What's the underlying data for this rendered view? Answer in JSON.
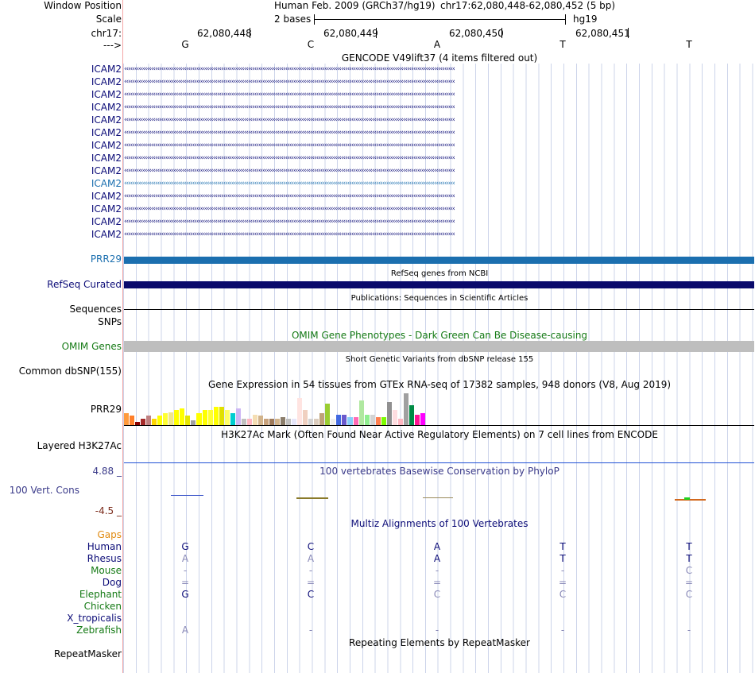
{
  "header": {
    "window_position_label": "Window Position",
    "scale_label": "Scale",
    "chrom_label": "chr17:",
    "strand_label": "--->",
    "assembly": "Human Feb. 2009 (GRCh37/hg19)",
    "position": "chr17:62,080,448-62,080,452 (5 bp)",
    "scale_text": "2 bases",
    "scale_db": "hg19",
    "coords": [
      "62,080,448",
      "62,080,449",
      "62,080,450",
      "62,080,451"
    ],
    "bases": [
      "G",
      "C",
      "A",
      "T",
      "T"
    ]
  },
  "gencode": {
    "title": "GENCODE V49lift37 (4 items filtered out)",
    "rows": [
      "ICAM2",
      "ICAM2",
      "ICAM2",
      "ICAM2",
      "ICAM2",
      "ICAM2",
      "ICAM2",
      "ICAM2",
      "ICAM2",
      "ICAM2",
      "ICAM2",
      "ICAM2",
      "ICAM2",
      "ICAM2"
    ],
    "highlight_row": 9,
    "prr29": "PRR29"
  },
  "refseq": {
    "title": "RefSeq genes from NCBI",
    "label": "RefSeq Curated"
  },
  "pubs": {
    "title": "Publications: Sequences in Scientific Articles",
    "label": "Sequences",
    "snps": "SNPs"
  },
  "omim": {
    "title": "OMIM Gene Phenotypes - Dark Green Can Be Disease-causing",
    "label": "OMIM Genes"
  },
  "dbsnp": {
    "title": "Short Genetic Variants from dbSNP release 155",
    "label": "Common dbSNP(155)"
  },
  "gtex": {
    "title": "Gene Expression in 54 tissues from GTEx RNA-seq of 17382 samples, 948 donors (V8, Aug 2019)",
    "label": "PRR29"
  },
  "h3k27": {
    "title": "H3K27Ac Mark (Often Found Near Active Regulatory Elements) on 7 cell lines from ENCODE",
    "label": "Layered H3K27Ac"
  },
  "cons": {
    "title": "100 vertebrates Basewise Conservation by PhyloP",
    "label": "100 Vert. Cons",
    "max": "4.88 _",
    "min": "-4.5 _"
  },
  "multiz": {
    "title": "Multiz Alignments of 100 Vertebrates",
    "gaps": "Gaps",
    "species": [
      {
        "name": "Human",
        "color": "#0c0c78",
        "bases": [
          "G",
          "C",
          "A",
          "T",
          "T"
        ]
      },
      {
        "name": "Rhesus",
        "color": "#0c0c78",
        "bases": [
          "A",
          "A",
          "A",
          "T",
          "T"
        ]
      },
      {
        "name": "Mouse",
        "color": "#157a15",
        "bases": [
          "-",
          "-",
          "-",
          "-",
          "C"
        ]
      },
      {
        "name": "Dog",
        "color": "#0c0c78",
        "bases": [
          "=",
          "=",
          "=",
          "=",
          "="
        ]
      },
      {
        "name": "Elephant",
        "color": "#157a15",
        "bases": [
          "G",
          "C",
          "C",
          "C",
          "C"
        ]
      },
      {
        "name": "Chicken",
        "color": "#157a15",
        "bases": [
          "",
          "",
          "",
          "",
          ""
        ]
      },
      {
        "name": "X_tropicalis",
        "color": "#0c0c78",
        "bases": [
          "",
          "",
          "",
          "",
          ""
        ]
      },
      {
        "name": "Zebrafish",
        "color": "#157a15",
        "bases": [
          "A",
          "-",
          "-",
          "-",
          "-"
        ]
      }
    ]
  },
  "repeat": {
    "title": "Repeating Elements by RepeatMasker",
    "label": "RepeatMasker"
  },
  "colors": {
    "gene_dark": "#0c0c78",
    "gene_light": "#1b6faf",
    "refseq_bar": "#0a0a6b",
    "omim_bar": "#bebebe",
    "h3k27_line": "#2152d6",
    "cons_label": "#3b3b8a"
  },
  "gtex_values": [
    0.35,
    0.28,
    0.1,
    0.2,
    0.28,
    0.2,
    0.28,
    0.35,
    0.38,
    0.45,
    0.5,
    0.28,
    0.15,
    0.35,
    0.45,
    0.45,
    0.55,
    0.55,
    0.45,
    0.35,
    0.5,
    0.2,
    0.2,
    0.3,
    0.28,
    0.2,
    0.2,
    0.2,
    0.25,
    0.2,
    0.2,
    0.8,
    0.45,
    0.2,
    0.2,
    0.35,
    0.65,
    0.2,
    0.3,
    0.3,
    0.25,
    0.25,
    0.75,
    0.3,
    0.3,
    0.25,
    0.25,
    0.7,
    0.45,
    0.2,
    0.95,
    0.6,
    0.3,
    0.35
  ]
}
